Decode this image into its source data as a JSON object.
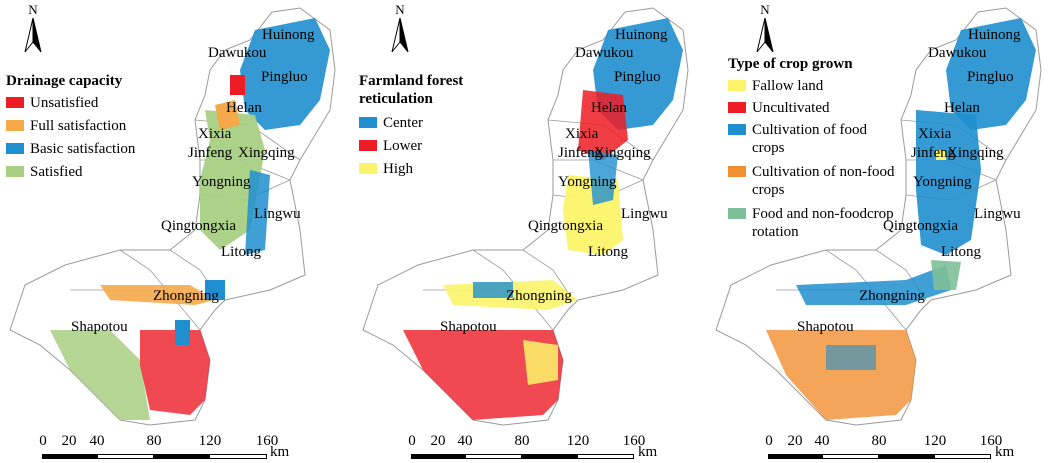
{
  "colors": {
    "red": "#ee1c25",
    "orange": "#f5a94a",
    "blue": "#1f8fcf",
    "green": "#a8cf82",
    "yellow": "#fbf46a",
    "dark_orange": "#f28f30",
    "sage": "#7fbf97",
    "boundary": "#9a9a9a"
  },
  "icons": {
    "north_arrow": "north-arrow-icon"
  },
  "panels": [
    {
      "legend": {
        "title": "Drainage capacity",
        "items": [
          {
            "label": "Unsatisfied",
            "color": "#ee1c25"
          },
          {
            "label": "Full satisfaction",
            "color": "#f5a94a"
          },
          {
            "label": "Basic satisfaction",
            "color": "#1f8fcf"
          },
          {
            "label": "Satisfied",
            "color": "#a8cf82"
          }
        ]
      },
      "north_label": "N",
      "towns": [
        "Huinong",
        "Dawukou",
        "Pingluo",
        "Helan",
        "Xixia",
        "Jinfeng",
        "Xingqing",
        "Yongning",
        "Lingwu",
        "Qingtongxia",
        "Litong",
        "Zhongning",
        "Shapotou"
      ],
      "scale": {
        "ticks": [
          "0",
          "20",
          "40",
          "80",
          "120",
          "160"
        ],
        "unit": "km"
      }
    },
    {
      "legend": {
        "title": "Farmland forest reticulation",
        "items": [
          {
            "label": "Center",
            "color": "#1f8fcf"
          },
          {
            "label": "Lower",
            "color": "#ee1c25"
          },
          {
            "label": "High",
            "color": "#fbf46a"
          }
        ]
      },
      "north_label": "N",
      "towns": [
        "Huinong",
        "Dawukou",
        "Pingluo",
        "Helan",
        "Xixia",
        "Jinfeng",
        "Xingqing",
        "Yongning",
        "Lingwu",
        "Qingtongxia",
        "Litong",
        "Zhongning",
        "Shapotou"
      ],
      "scale": {
        "ticks": [
          "0",
          "20",
          "40",
          "80",
          "120",
          "160"
        ],
        "unit": "km"
      }
    },
    {
      "legend": {
        "title": "Type of crop grown",
        "items": [
          {
            "label": "Fallow land",
            "color": "#fbf46a"
          },
          {
            "label": "Uncultivated",
            "color": "#ee1c25"
          },
          {
            "label": "Cultivation of food crops",
            "color": "#1f8fcf"
          },
          {
            "label": "Cultivation of non-food crops",
            "color": "#f28f30"
          },
          {
            "label": "Food and non-foodcrop rotation",
            "color": "#7fbf97"
          }
        ]
      },
      "north_label": "N",
      "towns": [
        "Huinong",
        "Dawukou",
        "Pingluo",
        "Helan",
        "Xixia",
        "Jinfeng",
        "Xingqing",
        "Yongning",
        "Lingwu",
        "Qingtongxia",
        "Litong",
        "Zhongning",
        "Shapotou"
      ],
      "scale": {
        "ticks": [
          "0",
          "20",
          "40",
          "80",
          "120",
          "160"
        ],
        "unit": "km"
      }
    }
  ]
}
